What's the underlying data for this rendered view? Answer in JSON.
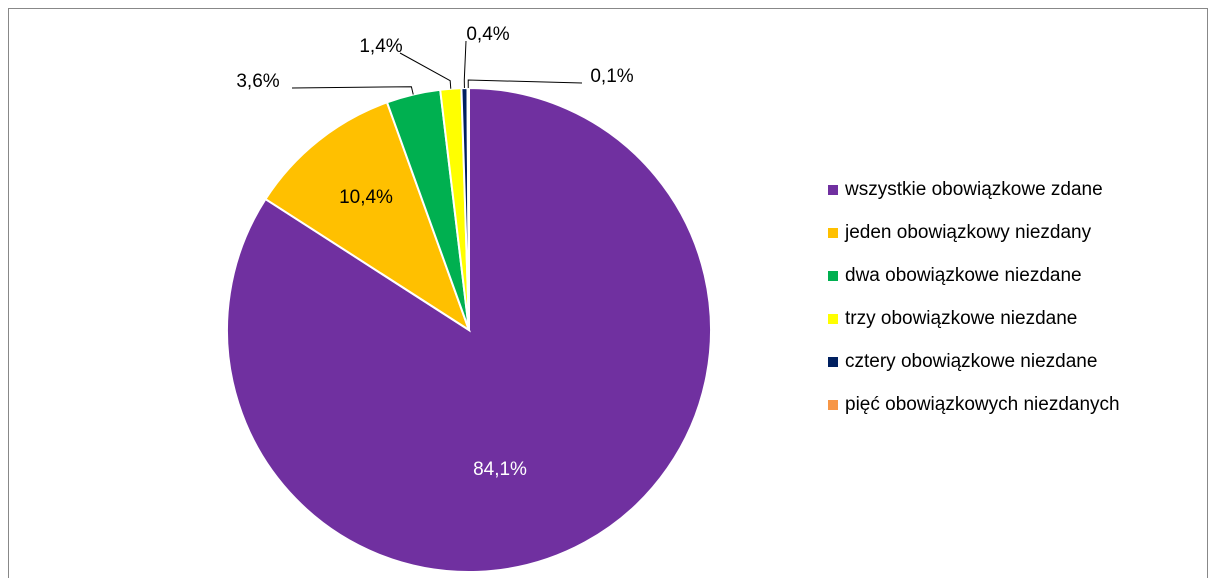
{
  "chart_data": {
    "type": "pie",
    "categories": [
      "wszystkie obowiązkowe zdane",
      "jeden obowiązkowy niezdany",
      "dwa obowiązkowe niezdane",
      "trzy obowiązkowe niezdane",
      "cztery obowiązkowe niezdane",
      "pięć obowiązkowych niezdanych"
    ],
    "values": [
      84.1,
      10.4,
      3.6,
      1.4,
      0.4,
      0.1
    ],
    "value_labels": [
      "84,1%",
      "10,4%",
      "3,6%",
      "1,4%",
      "0,4%",
      "0,1%"
    ],
    "colors": [
      "#7030a0",
      "#ffc000",
      "#00b050",
      "#ffff00",
      "#002060",
      "#f79646"
    ],
    "legend": "right"
  }
}
